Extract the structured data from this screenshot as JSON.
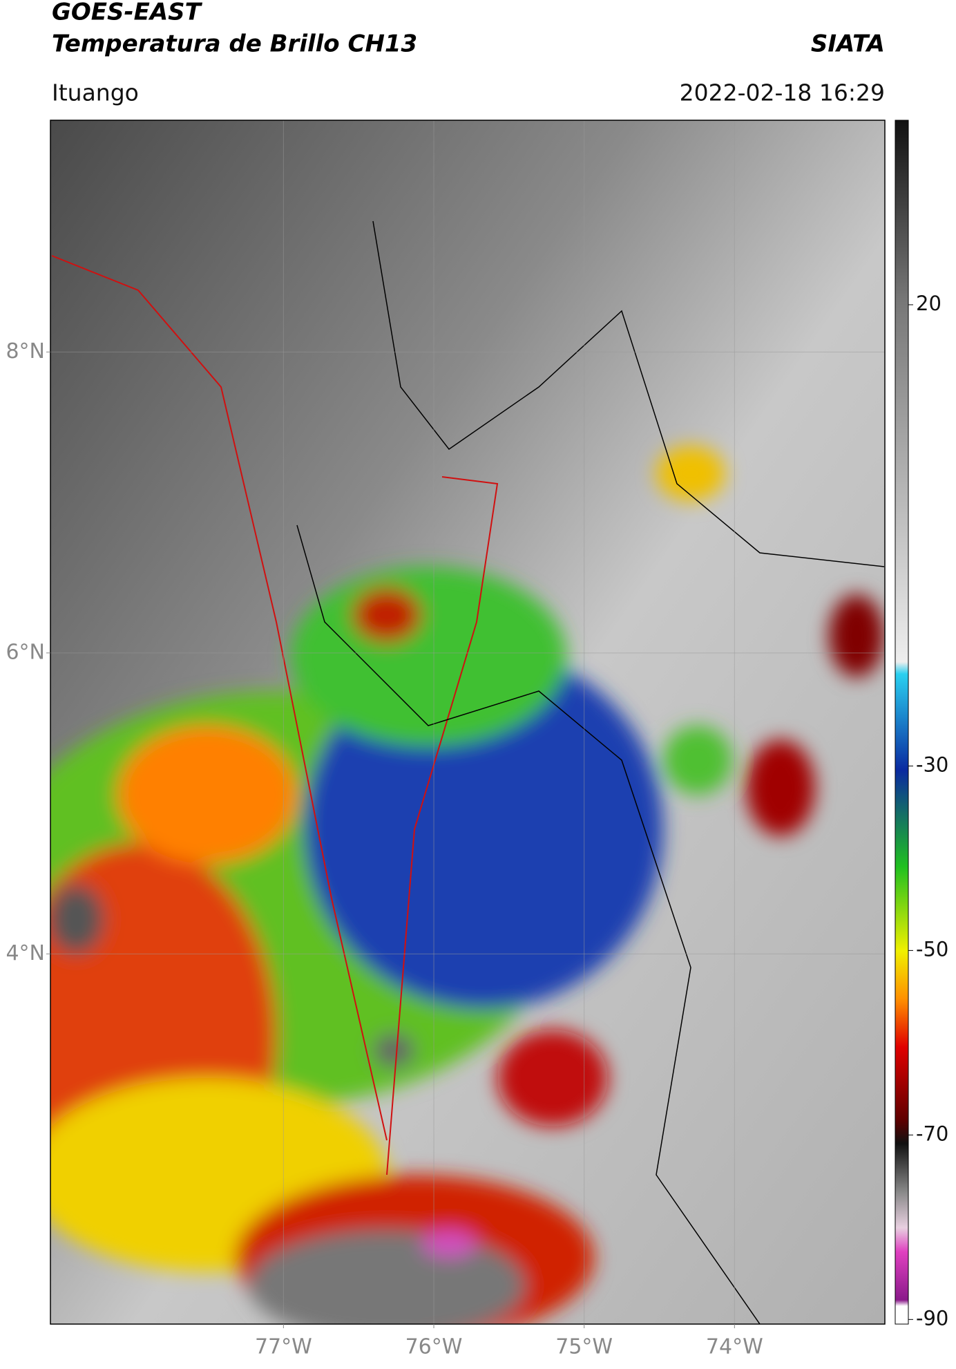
{
  "header": {
    "title_line1": "GOES-EAST",
    "title_line2": "Temperatura de Brillo CH13",
    "source": "SIATA",
    "location": "Ituango",
    "timestamp": "2022-02-18 16:29"
  },
  "map": {
    "xlim": [
      -78.55,
      -73.0
    ],
    "ylim": [
      1.54,
      9.54
    ],
    "xticks": [
      {
        "value": -77,
        "label": "77°W"
      },
      {
        "value": -76,
        "label": "76°W"
      },
      {
        "value": -75,
        "label": "75°W"
      },
      {
        "value": -74,
        "label": "74°W"
      }
    ],
    "yticks": [
      {
        "value": 8,
        "label": "8°N"
      },
      {
        "value": 6,
        "label": "6°N"
      },
      {
        "value": 4,
        "label": "4°N"
      }
    ],
    "grid": true
  },
  "colorbar": {
    "clim": [
      -90.5,
      40
    ],
    "ticks": [
      20,
      -30,
      -50,
      -70,
      -90
    ]
  }
}
